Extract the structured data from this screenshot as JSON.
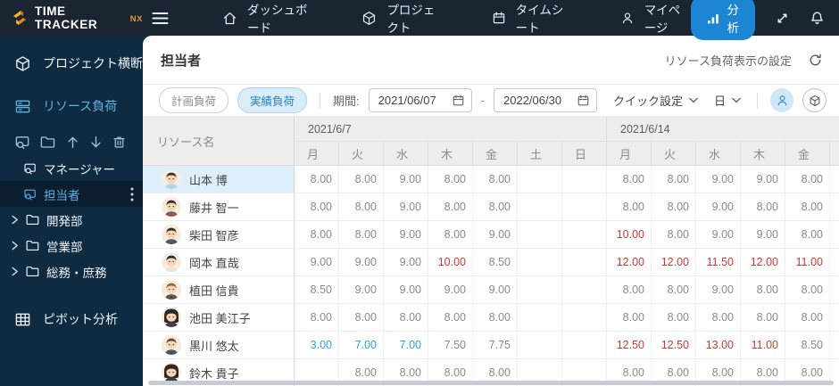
{
  "topbar": {
    "logo_title": "TIME TRACKER",
    "logo_suffix": "NX",
    "nav": [
      {
        "icon": "home-icon",
        "label": "ダッシュボード"
      },
      {
        "icon": "cube-icon",
        "label": "プロジェクト"
      },
      {
        "icon": "calendar-icon",
        "label": "タイムシート"
      },
      {
        "icon": "user-icon",
        "label": "マイページ"
      }
    ],
    "analysis_label": "分析",
    "analysis_icon": "bar-chart-icon",
    "right_icons": [
      "expand-icon",
      "bell-icon"
    ],
    "accent_color": "#1d86d4"
  },
  "sidebar": {
    "project_cross_label": "プロジェクト横断",
    "resource_load_label": "リソース負荷",
    "pivot_label": "ピボット分析",
    "tool_icons": [
      "resource-icon",
      "folder-icon",
      "arrow-up-icon",
      "arrow-down-icon",
      "trash-icon"
    ],
    "tree": [
      {
        "label": "マネージャー",
        "type": "view",
        "selected": false
      },
      {
        "label": "担当者",
        "type": "view",
        "selected": true
      },
      {
        "label": "開発部",
        "type": "folder",
        "selected": false
      },
      {
        "label": "営業部",
        "type": "folder",
        "selected": false
      },
      {
        "label": "総務・庶務",
        "type": "folder",
        "selected": false
      }
    ]
  },
  "main": {
    "title": "担当者",
    "settings_link": "リソース負荷表示の設定",
    "filter": {
      "plan_label": "計画負荷",
      "actual_label": "実績負荷",
      "period_label": "期間:",
      "date_from": "2021/06/07",
      "date_to": "2022/06/30",
      "range_separator": "-",
      "quick_label": "クイック設定",
      "unit_label": "日",
      "view_toggles": [
        "user-icon",
        "cube-icon"
      ]
    }
  },
  "table": {
    "resource_header": "リソース名",
    "weeks": [
      {
        "label": "2021/6/7",
        "days": [
          "月",
          "火",
          "水",
          "木",
          "金",
          "土",
          "日"
        ]
      },
      {
        "label": "2021/6/14",
        "days": [
          "月",
          "火",
          "水",
          "木",
          "金"
        ]
      }
    ],
    "over_color": "#d0392f",
    "under_color": "#2aa5dc",
    "rows": [
      {
        "name": "山本 博",
        "selected": true,
        "avatar": {
          "hair": "#42332a",
          "shirt": "#b5d7eb",
          "female": false
        },
        "cells": [
          [
            "8.00",
            ""
          ],
          [
            "8.00",
            ""
          ],
          [
            "9.00",
            ""
          ],
          [
            "8.00",
            ""
          ],
          [
            "8.00",
            ""
          ],
          [
            "",
            ""
          ],
          [
            "",
            ""
          ],
          [
            "8.00",
            ""
          ],
          [
            "8.00",
            ""
          ],
          [
            "9.00",
            ""
          ],
          [
            "9.00",
            ""
          ],
          [
            "8.00",
            ""
          ]
        ]
      },
      {
        "name": "藤井 智一",
        "selected": false,
        "avatar": {
          "hair": "#38281e",
          "shirt": "#8a5a4a",
          "female": false
        },
        "cells": [
          [
            "8.00",
            ""
          ],
          [
            "8.00",
            ""
          ],
          [
            "9.00",
            ""
          ],
          [
            "8.00",
            ""
          ],
          [
            "8.00",
            ""
          ],
          [
            "",
            ""
          ],
          [
            "",
            ""
          ],
          [
            "8.00",
            ""
          ],
          [
            "8.00",
            ""
          ],
          [
            "9.00",
            ""
          ],
          [
            "8.00",
            ""
          ],
          [
            "8.00",
            ""
          ]
        ]
      },
      {
        "name": "柴田 智彦",
        "selected": false,
        "avatar": {
          "hair": "#3a2e26",
          "shirt": "#4d5a66",
          "female": false
        },
        "cells": [
          [
            "8.00",
            ""
          ],
          [
            "8.00",
            ""
          ],
          [
            "9.00",
            ""
          ],
          [
            "8.00",
            ""
          ],
          [
            "9.00",
            ""
          ],
          [
            "",
            ""
          ],
          [
            "",
            ""
          ],
          [
            "10.00",
            "r"
          ],
          [
            "8.00",
            ""
          ],
          [
            "9.00",
            ""
          ],
          [
            "9.00",
            ""
          ],
          [
            "8.00",
            ""
          ]
        ]
      },
      {
        "name": "岡本 直哉",
        "selected": false,
        "avatar": {
          "hair": "#2e2622",
          "shirt": "#e8e4da",
          "female": false
        },
        "cells": [
          [
            "9.00",
            ""
          ],
          [
            "9.00",
            ""
          ],
          [
            "9.00",
            ""
          ],
          [
            "10.00",
            "r"
          ],
          [
            "8.50",
            ""
          ],
          [
            "",
            ""
          ],
          [
            "",
            ""
          ],
          [
            "12.00",
            "r"
          ],
          [
            "12.00",
            "r"
          ],
          [
            "11.50",
            "r"
          ],
          [
            "12.00",
            "r"
          ],
          [
            "11.00",
            "r"
          ]
        ]
      },
      {
        "name": "植田 信貴",
        "selected": false,
        "avatar": {
          "hair": "#9a6232",
          "shirt": "#5a5248",
          "female": false
        },
        "cells": [
          [
            "8.50",
            ""
          ],
          [
            "9.00",
            ""
          ],
          [
            "9.00",
            ""
          ],
          [
            "9.00",
            ""
          ],
          [
            "9.00",
            ""
          ],
          [
            "",
            ""
          ],
          [
            "",
            ""
          ],
          [
            "8.00",
            ""
          ],
          [
            "8.00",
            ""
          ],
          [
            "9.00",
            ""
          ],
          [
            "8.00",
            ""
          ],
          [
            "8.00",
            ""
          ]
        ]
      },
      {
        "name": "池田 美江子",
        "selected": false,
        "avatar": {
          "hair": "#33281f",
          "shirt": "#3d4148",
          "female": true
        },
        "cells": [
          [
            "8.00",
            ""
          ],
          [
            "8.00",
            ""
          ],
          [
            "8.00",
            ""
          ],
          [
            "8.00",
            ""
          ],
          [
            "8.00",
            ""
          ],
          [
            "",
            ""
          ],
          [
            "",
            ""
          ],
          [
            "8.00",
            ""
          ],
          [
            "8.00",
            ""
          ],
          [
            "8.00",
            ""
          ],
          [
            "8.00",
            ""
          ],
          [
            "8.00",
            ""
          ]
        ]
      },
      {
        "name": "黒川 悠太",
        "selected": false,
        "avatar": {
          "hair": "#6b4a2a",
          "shirt": "#4a5560",
          "female": false
        },
        "cells": [
          [
            "3.00",
            "b"
          ],
          [
            "7.00",
            "b"
          ],
          [
            "7.00",
            "b"
          ],
          [
            "7.50",
            ""
          ],
          [
            "7.75",
            ""
          ],
          [
            "",
            ""
          ],
          [
            "",
            ""
          ],
          [
            "12.50",
            "r"
          ],
          [
            "12.50",
            "r"
          ],
          [
            "13.00",
            "r"
          ],
          [
            "11.00",
            "r"
          ],
          [
            "8.50",
            ""
          ]
        ]
      },
      {
        "name": "鈴木 貴子",
        "selected": false,
        "avatar": {
          "hair": "#2e2622",
          "shirt": "#3d4148",
          "female": true
        },
        "cells": [
          [
            "",
            ""
          ],
          [
            "8.00",
            ""
          ],
          [
            "8.00",
            ""
          ],
          [
            "8.00",
            ""
          ],
          [
            "8.00",
            ""
          ],
          [
            "",
            ""
          ],
          [
            "",
            ""
          ],
          [
            "8.00",
            ""
          ],
          [
            "8.00",
            ""
          ],
          [
            "8.00",
            ""
          ],
          [
            "8.00",
            ""
          ],
          [
            "8.00",
            ""
          ]
        ]
      }
    ]
  }
}
